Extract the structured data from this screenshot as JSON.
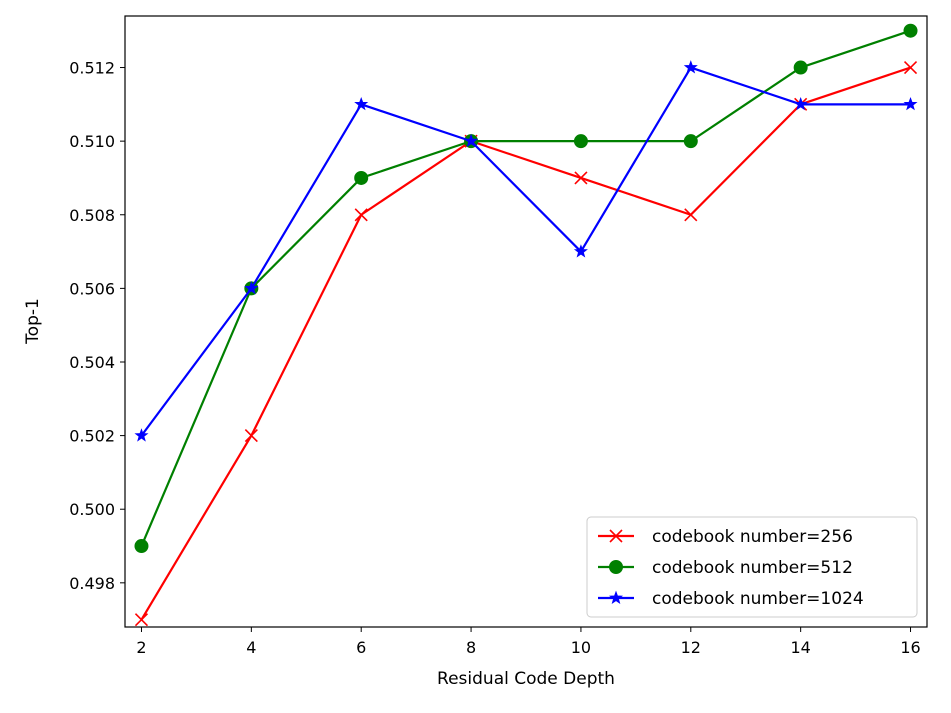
{
  "chart_data": {
    "type": "line",
    "title": "",
    "xlabel": "Residual Code Depth",
    "ylabel": "Top-1",
    "x": [
      2,
      4,
      6,
      8,
      10,
      12,
      14,
      16
    ],
    "xlim": [
      1.7,
      16.3
    ],
    "ylim": [
      0.4968,
      0.5134
    ],
    "xticks": [
      2,
      4,
      6,
      8,
      10,
      12,
      14,
      16
    ],
    "xtick_labels": [
      "2",
      "4",
      "6",
      "8",
      "10",
      "12",
      "14",
      "16"
    ],
    "yticks": [
      0.498,
      0.5,
      0.502,
      0.504,
      0.506,
      0.508,
      0.51,
      0.512
    ],
    "ytick_labels": [
      "0.498",
      "0.500",
      "0.502",
      "0.504",
      "0.506",
      "0.508",
      "0.510",
      "0.512"
    ],
    "grid": false,
    "legend_position": "lower-right",
    "series": [
      {
        "name": "codebook number=256",
        "color": "#ff0000",
        "marker": "x",
        "values": [
          0.497,
          0.502,
          0.508,
          0.51,
          0.509,
          0.508,
          0.511,
          0.512
        ]
      },
      {
        "name": "codebook number=512",
        "color": "#008000",
        "marker": "o",
        "values": [
          0.499,
          0.506,
          0.509,
          0.51,
          0.51,
          0.51,
          0.512,
          0.513
        ]
      },
      {
        "name": "codebook number=1024",
        "color": "#0000ff",
        "marker": "*",
        "values": [
          0.502,
          0.506,
          0.511,
          0.51,
          0.507,
          0.512,
          0.511,
          0.511
        ]
      }
    ]
  }
}
